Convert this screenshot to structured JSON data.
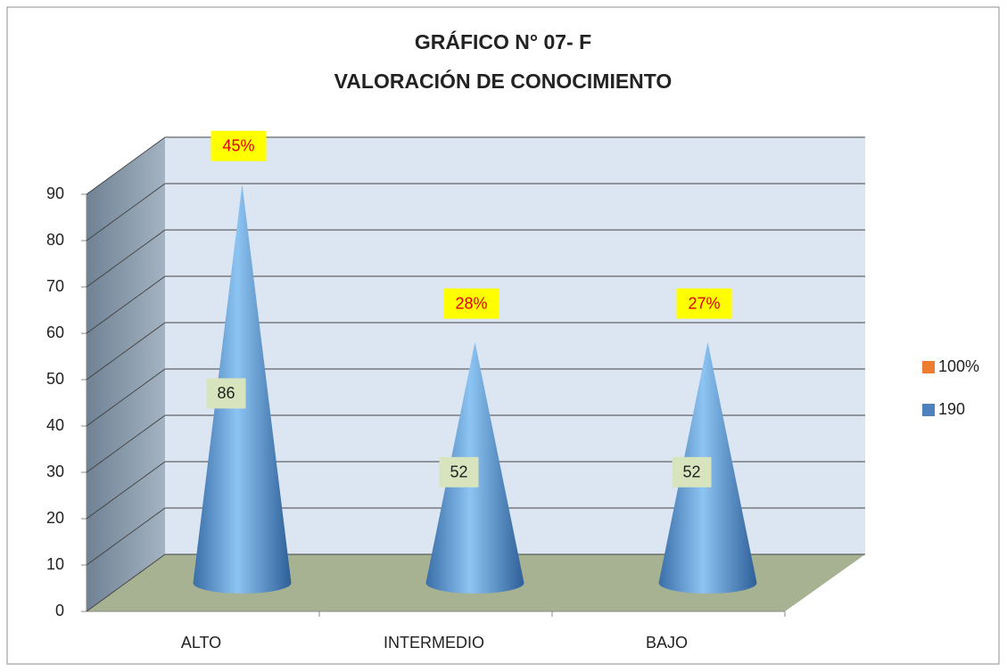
{
  "chart_data": {
    "type": "cone3d",
    "title": "GRÁFICO N° 07- F",
    "subtitle": "VALORACIÓN DE CONOCIMIENTO",
    "categories": [
      "ALTO",
      "INTERMEDIO",
      "BAJO"
    ],
    "series": [
      {
        "name": "100%",
        "color": "#ed7d31",
        "values": [
          0.45,
          0.28,
          0.27
        ],
        "value_labels": [
          "45%",
          "28%",
          "27%"
        ]
      },
      {
        "name": "190",
        "color": "#4f81bd",
        "values": [
          86,
          52,
          52
        ]
      }
    ],
    "ylim": [
      0,
      90
    ],
    "yticks": [
      0,
      10,
      20,
      30,
      40,
      50,
      60,
      70,
      80,
      90
    ],
    "grid": true,
    "legend": "right"
  }
}
